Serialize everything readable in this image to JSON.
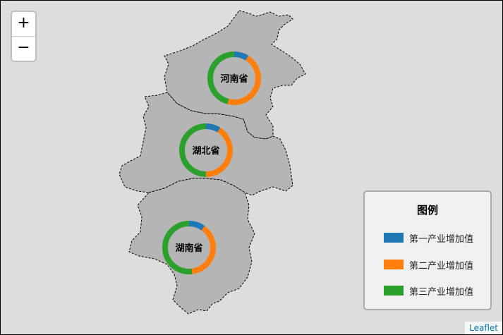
{
  "zoom": {
    "in_label": "+",
    "out_label": "−"
  },
  "legend": {
    "title": "图例",
    "items": [
      {
        "label": "第一产业增加值",
        "color": "#1f77b4"
      },
      {
        "label": "第二产业增加值",
        "color": "#ff7f0e"
      },
      {
        "label": "第三产业增加值",
        "color": "#2ca02c"
      }
    ]
  },
  "attribution": "Leaflet",
  "provinces": [
    {
      "name": "河南省",
      "fill": "#b5b5b5",
      "shares": [
        0.09,
        0.45,
        0.46
      ]
    },
    {
      "name": "湖北省",
      "fill": "#b5b5b5",
      "shares": [
        0.09,
        0.41,
        0.5
      ]
    },
    {
      "name": "湖南省",
      "fill": "#b5b5b5",
      "shares": [
        0.1,
        0.38,
        0.52
      ]
    }
  ]
}
